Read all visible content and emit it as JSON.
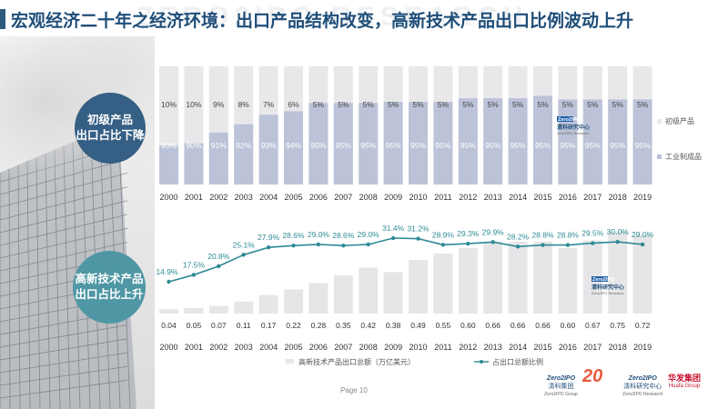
{
  "title": "宏观经济二十年之经济环境：出口产品结构改变，高新技术产品出口比例波动上升",
  "watermark": "ZERO2IPO RESEARCH",
  "left_labels": {
    "top": [
      "初级产品",
      "出口占比下降"
    ],
    "bottom": [
      "高新技术产品",
      "出口占比上升"
    ]
  },
  "chart_logo": {
    "top_text": "Zero2IPO",
    "cn": "清科研究中心",
    "en": "Zero2IPO Research"
  },
  "footer": {
    "page": "Page 10",
    "logo1": {
      "top": "Zero2IPO",
      "bottom": "清科集团",
      "en": "Zero2IPO Group"
    },
    "logo2": {
      "text": "20"
    },
    "logo3": {
      "top": "Zero2IPO",
      "bottom": "清科研究中心",
      "en": "Zero2IPO Research"
    },
    "logo4": {
      "top": "华发集团",
      "en": "Huafa Group"
    }
  },
  "colors": {
    "title": "#1f4e79",
    "primary_bar": "#bcc3d8",
    "manufactured_bar": "#bcc3d8",
    "primary_bar_light": "#e8e8ea",
    "hightech_bar": "#e6e6e8",
    "line": "#2e8a95"
  },
  "chart_data": [
    {
      "type": "bar",
      "stacked": true,
      "percent": true,
      "categories": [
        "2000",
        "2001",
        "2002",
        "2003",
        "2004",
        "2005",
        "2006",
        "2007",
        "2008",
        "2009",
        "2010",
        "2011",
        "2012",
        "2013",
        "2014",
        "2015",
        "2016",
        "2017",
        "2018",
        "2019"
      ],
      "series": [
        {
          "name": "工业制成品",
          "values": [
            90,
            90,
            91,
            92,
            93,
            94,
            95,
            95,
            95,
            95,
            95,
            95,
            95,
            95,
            95,
            95,
            95,
            95,
            95,
            95
          ],
          "labels": [
            "90%",
            "90%",
            "91%",
            "92%",
            "93%",
            "94%",
            "95%",
            "95%",
            "95%",
            "95%",
            "95%",
            "95%",
            "95%",
            "95%",
            "95%",
            "95%",
            "95%",
            "95%",
            "95%",
            "95%"
          ]
        },
        {
          "name": "初级产品",
          "values": [
            10,
            10,
            9,
            8,
            7,
            6,
            5,
            5,
            5,
            5,
            5,
            5,
            5,
            5,
            5,
            5,
            5,
            5,
            5,
            5
          ],
          "labels": [
            "10%",
            "10%",
            "9%",
            "8%",
            "7%",
            "6%",
            "5%",
            "5%",
            "5%",
            "5%",
            "5%",
            "5%",
            "5%",
            "5%",
            "5%",
            "5%",
            "5%",
            "5%",
            "5%",
            "5%"
          ]
        }
      ],
      "bar_heights_pct": [
        33,
        35,
        44,
        51,
        59,
        62,
        69,
        69,
        69,
        70,
        70,
        70,
        73,
        73,
        73,
        75,
        72,
        72,
        72,
        72
      ],
      "legend_position": "right"
    },
    {
      "type": "bar+line",
      "categories": [
        "2000",
        "2001",
        "2002",
        "2003",
        "2004",
        "2005",
        "2006",
        "2007",
        "2008",
        "2009",
        "2010",
        "2011",
        "2012",
        "2013",
        "2014",
        "2015",
        "2016",
        "2017",
        "2018",
        "2019"
      ],
      "bars": {
        "name": "高新技术产品出口总额（万亿美元）",
        "values": [
          0.04,
          0.05,
          0.07,
          0.11,
          0.17,
          0.22,
          0.28,
          0.35,
          0.42,
          0.38,
          0.49,
          0.55,
          0.6,
          0.66,
          0.66,
          0.66,
          0.6,
          0.67,
          0.75,
          0.72
        ],
        "labels": [
          "0.04",
          "0.05",
          "0.07",
          "0.11",
          "0.17",
          "0.22",
          "0.28",
          "0.35",
          "0.42",
          "0.38",
          "0.49",
          "0.55",
          "0.60",
          "0.66",
          "0.66",
          "0.66",
          "0.60",
          "0.67",
          "0.75",
          "0.72"
        ]
      },
      "line": {
        "name": "占出口总额比例",
        "values": [
          14.9,
          17.5,
          20.8,
          25.1,
          27.9,
          28.6,
          29.0,
          28.6,
          29.0,
          31.4,
          31.2,
          28.9,
          29.3,
          29.9,
          28.2,
          28.8,
          28.8,
          29.5,
          30.0,
          29.0
        ],
        "labels": [
          "14.9%",
          "17.5%",
          "20.8%",
          "25.1%",
          "27.9%",
          "28.6%",
          "29.0%",
          "28.6%",
          "29.0%",
          "31.4%",
          "31.2%",
          "28.9%",
          "29.3%",
          "29.9%",
          "28.2%",
          "28.8%",
          "28.8%",
          "29.5%",
          "30.0%",
          "29.0%"
        ]
      },
      "legend_position": "bottom"
    }
  ]
}
